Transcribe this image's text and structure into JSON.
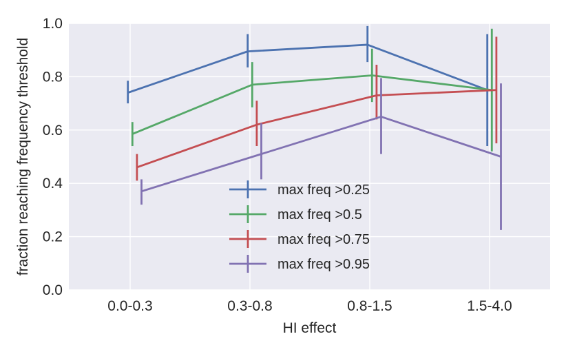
{
  "chart_data": {
    "type": "line",
    "title": "",
    "xlabel": "HI effect",
    "ylabel": "fraction reaching frequency threshold",
    "categories": [
      "0.0-0.3",
      "0.3-0.8",
      "0.8-1.5",
      "1.5-4.0"
    ],
    "ylim": [
      0.0,
      1.0
    ],
    "yticks": [
      "0.0",
      "0.2",
      "0.4",
      "0.6",
      "0.8",
      "1.0"
    ],
    "grid": true,
    "legend_position": "lower-center",
    "error_bars": true,
    "series": [
      {
        "name": "max freq >0.25",
        "color": "#4c72b0",
        "values": [
          0.74,
          0.895,
          0.92,
          0.75
        ],
        "err_low": [
          0.7,
          0.835,
          0.855,
          0.54
        ],
        "err_high": [
          0.785,
          0.96,
          0.99,
          0.96
        ]
      },
      {
        "name": "max freq >0.5",
        "color": "#55a868",
        "values": [
          0.585,
          0.77,
          0.805,
          0.75
        ],
        "err_low": [
          0.54,
          0.685,
          0.705,
          0.52
        ],
        "err_high": [
          0.63,
          0.855,
          0.905,
          0.98
        ]
      },
      {
        "name": "max freq >0.75",
        "color": "#c44e52",
        "values": [
          0.46,
          0.62,
          0.73,
          0.75
        ],
        "err_low": [
          0.41,
          0.54,
          0.64,
          0.55
        ],
        "err_high": [
          0.51,
          0.71,
          0.845,
          0.95
        ]
      },
      {
        "name": "max freq >0.95",
        "color": "#8172b2",
        "values": [
          0.37,
          0.51,
          0.65,
          0.5
        ],
        "err_low": [
          0.32,
          0.415,
          0.51,
          0.225
        ],
        "err_high": [
          0.415,
          0.625,
          0.795,
          0.775
        ]
      }
    ]
  }
}
